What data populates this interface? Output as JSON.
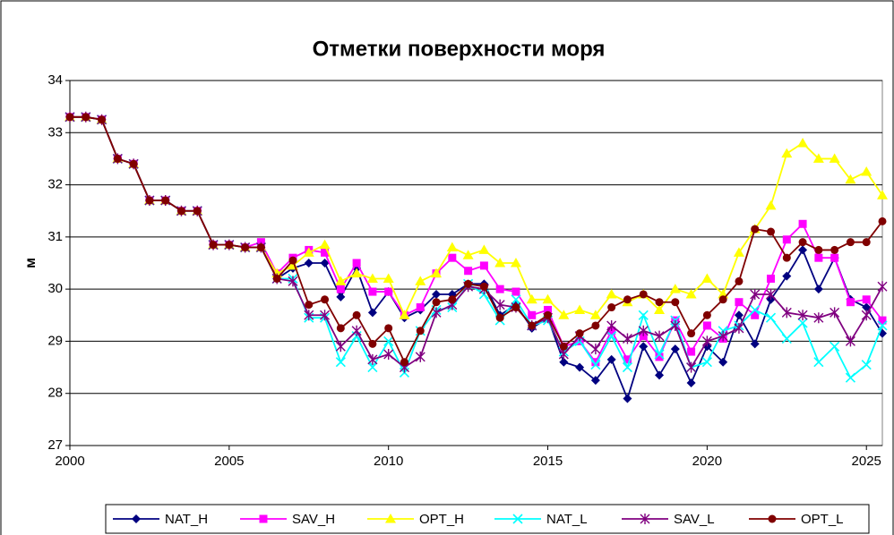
{
  "chart_data": {
    "type": "line",
    "title": "Отметки поверхности моря",
    "y_label": "м",
    "x": [
      2000,
      2000.5,
      2001,
      2001.5,
      2002,
      2002.5,
      2003,
      2003.5,
      2004,
      2004.5,
      2005,
      2005.5,
      2006,
      2006.5,
      2007,
      2007.5,
      2008,
      2008.5,
      2009,
      2009.5,
      2010,
      2010.5,
      2011,
      2011.5,
      2012,
      2012.5,
      2013,
      2013.5,
      2014,
      2014.5,
      2015,
      2015.5,
      2016,
      2016.5,
      2017,
      2017.5,
      2018,
      2018.5,
      2019,
      2019.5,
      2020,
      2020.5,
      2021,
      2021.5,
      2022,
      2022.5,
      2023,
      2023.5,
      2024,
      2024.5,
      2025,
      2025.5
    ],
    "series": [
      {
        "name": "NAT_H",
        "color": "#000080",
        "marker": "diamond",
        "values": [
          33.3,
          33.3,
          33.25,
          32.5,
          32.4,
          31.7,
          31.7,
          31.5,
          31.5,
          30.85,
          30.85,
          30.8,
          30.8,
          30.2,
          30.4,
          30.5,
          30.5,
          29.85,
          30.4,
          29.55,
          29.95,
          29.45,
          29.6,
          29.9,
          29.9,
          30.1,
          30.1,
          29.5,
          29.7,
          29.25,
          29.45,
          28.6,
          28.5,
          28.25,
          28.65,
          27.9,
          28.9,
          28.35,
          28.85,
          28.2,
          28.9,
          28.6,
          29.5,
          28.95,
          29.8,
          30.25,
          30.75,
          30.0,
          30.6,
          29.8,
          29.65,
          29.15
        ]
      },
      {
        "name": "SAV_H",
        "color": "#ff00ff",
        "marker": "square",
        "values": [
          33.3,
          33.3,
          33.25,
          32.5,
          32.4,
          31.7,
          31.7,
          31.5,
          31.5,
          30.85,
          30.85,
          30.8,
          30.9,
          30.3,
          30.6,
          30.75,
          30.7,
          30.0,
          30.5,
          29.95,
          29.95,
          29.5,
          29.65,
          30.3,
          30.6,
          30.35,
          30.45,
          30.0,
          29.95,
          29.5,
          29.6,
          28.9,
          29.0,
          28.6,
          29.2,
          28.65,
          29.1,
          28.7,
          29.4,
          28.8,
          29.3,
          29.05,
          29.75,
          29.5,
          30.2,
          30.95,
          31.25,
          30.6,
          30.6,
          29.75,
          29.8,
          29.4
        ]
      },
      {
        "name": "OPT_H",
        "color": "#ffff00",
        "marker": "triangle",
        "values": [
          33.3,
          33.3,
          33.25,
          32.5,
          32.4,
          31.7,
          31.7,
          31.5,
          31.5,
          30.85,
          30.85,
          30.8,
          30.8,
          30.3,
          30.45,
          30.7,
          30.85,
          30.15,
          30.3,
          30.2,
          30.2,
          29.5,
          30.15,
          30.3,
          30.8,
          30.65,
          30.75,
          30.5,
          30.5,
          29.8,
          29.8,
          29.5,
          29.6,
          29.5,
          29.9,
          29.75,
          29.9,
          29.6,
          30.0,
          29.9,
          30.2,
          29.9,
          30.7,
          31.15,
          31.6,
          32.6,
          32.8,
          32.5,
          32.5,
          32.1,
          32.25,
          31.8
        ]
      },
      {
        "name": "NAT_L",
        "color": "#00ffff",
        "marker": "x",
        "values": [
          33.3,
          33.3,
          33.25,
          32.5,
          32.4,
          31.7,
          31.7,
          31.5,
          31.5,
          30.85,
          30.85,
          30.8,
          30.8,
          30.2,
          30.2,
          29.45,
          29.45,
          28.6,
          29.1,
          28.5,
          29.0,
          28.4,
          29.2,
          29.6,
          29.65,
          30.1,
          29.9,
          29.4,
          29.8,
          29.3,
          29.4,
          28.8,
          29.0,
          28.55,
          29.1,
          28.5,
          29.5,
          28.75,
          29.4,
          28.5,
          28.6,
          29.2,
          29.3,
          29.6,
          29.45,
          29.05,
          29.35,
          28.6,
          28.9,
          28.3,
          28.55,
          29.3
        ]
      },
      {
        "name": "SAV_L",
        "color": "#800080",
        "marker": "star",
        "values": [
          33.3,
          33.3,
          33.25,
          32.5,
          32.4,
          31.7,
          31.7,
          31.5,
          31.5,
          30.85,
          30.85,
          30.8,
          30.8,
          30.2,
          30.15,
          29.5,
          29.5,
          28.9,
          29.2,
          28.65,
          28.75,
          28.5,
          28.7,
          29.55,
          29.7,
          30.05,
          30.0,
          29.7,
          29.65,
          29.3,
          29.45,
          28.75,
          29.1,
          28.85,
          29.3,
          29.05,
          29.2,
          29.1,
          29.3,
          28.5,
          29.0,
          29.1,
          29.25,
          29.9,
          29.9,
          29.55,
          29.5,
          29.45,
          29.55,
          29.0,
          29.5,
          30.05
        ]
      },
      {
        "name": "OPT_L",
        "color": "#800000",
        "marker": "circle",
        "values": [
          33.3,
          33.3,
          33.25,
          32.5,
          32.4,
          31.7,
          31.7,
          31.5,
          31.5,
          30.85,
          30.85,
          30.8,
          30.8,
          30.2,
          30.55,
          29.7,
          29.8,
          29.25,
          29.5,
          28.95,
          29.25,
          28.6,
          29.2,
          29.75,
          29.8,
          30.1,
          30.05,
          29.45,
          29.65,
          29.3,
          29.5,
          28.9,
          29.15,
          29.3,
          29.65,
          29.8,
          29.9,
          29.75,
          29.75,
          29.15,
          29.5,
          29.8,
          30.15,
          31.15,
          31.1,
          30.6,
          30.9,
          30.75,
          30.75,
          30.9,
          30.9,
          31.3
        ]
      }
    ],
    "xlim": [
      2000,
      2025.5
    ],
    "xticks": [
      2000,
      2005,
      2010,
      2015,
      2020,
      2025
    ],
    "ylim": [
      27,
      34
    ],
    "yticks": [
      27,
      28,
      29,
      30,
      31,
      32,
      33,
      34
    ],
    "grid": true,
    "legend": "bottom"
  }
}
